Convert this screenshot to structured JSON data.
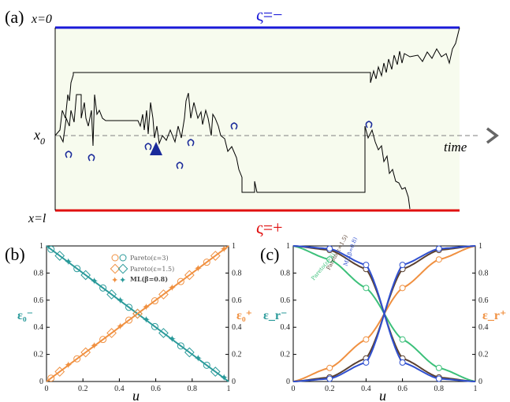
{
  "panel_a": {
    "label": "(a)",
    "top_boundary_label": "x=0",
    "bottom_boundary_label": "x=l",
    "start_label": "x",
    "start_subscript": "0",
    "time_label": "time",
    "top_sign_label": "ς=−",
    "bottom_sign_label": "ς=+",
    "colors": {
      "top": "#1a1ad8",
      "bottom": "#e01010",
      "bg": "#f7fbee",
      "arrow": "#666666",
      "marks": "#1a2a9a"
    }
  },
  "panel_b": {
    "label": "(b)",
    "xlabel": "u",
    "ylabel_left": "ε₀⁻",
    "ylabel_right": "ε₀⁺",
    "legend": [
      "Pareto(ε=3)",
      "Pareto(ε=1.5)",
      "ML(β=0.8)"
    ],
    "x_ticks": [
      "0",
      "0.2",
      "0.4",
      "0.6",
      "0.8",
      "1"
    ],
    "y_ticks": [
      "0",
      "0.2",
      "0.4",
      "0.6",
      "0.8",
      "1"
    ],
    "colors": {
      "minus": "#2a9a9a",
      "plus": "#f09040"
    }
  },
  "panel_c": {
    "label": "(c)",
    "xlabel": "u",
    "ylabel_left": "ε_r⁻",
    "ylabel_right": "ε_r⁺",
    "curve_labels": [
      "Pareto(ε=3)",
      "Pareto(ε=1.5)",
      "ML(β=0.8)"
    ],
    "x_ticks": [
      "0",
      "0.2",
      "0.4",
      "0.6",
      "0.8",
      "1"
    ],
    "y_ticks": [
      "0",
      "0.2",
      "0.4",
      "0.6",
      "0.8",
      "1"
    ],
    "colors": {
      "pareto3": "#3cc07a",
      "pareto15": "#5a4030",
      "ml": "#3050d0",
      "plus": "#f09040"
    }
  },
  "chart_data": [
    {
      "type": "line",
      "xlabel": "u",
      "ylim": [
        0,
        1
      ],
      "xlim": [
        0,
        1
      ],
      "series": [
        {
          "name": "Pareto(ε=3)",
          "x": [
            0,
            1
          ],
          "values": [
            1,
            0
          ]
        },
        {
          "name": "Pareto(ε=1.5)",
          "x": [
            0,
            1
          ],
          "values": [
            1,
            0
          ]
        },
        {
          "name": "ML(β=0.8)",
          "x": [
            0,
            1
          ],
          "values": [
            1,
            0
          ]
        }
      ]
    },
    {
      "type": "line",
      "xlabel": "u",
      "ylim": [
        0,
        1
      ],
      "xlim": [
        0,
        1
      ],
      "series": [
        {
          "name": "Pareto(ε=3)",
          "x": [
            0,
            0.2,
            0.4,
            0.6,
            0.8,
            1
          ],
          "values": [
            1,
            0.9,
            0.69,
            0.31,
            0.1,
            0
          ]
        },
        {
          "name": "Pareto(ε=1.5)",
          "x": [
            0,
            0.2,
            0.4,
            0.6,
            0.8,
            1
          ],
          "values": [
            1,
            0.97,
            0.83,
            0.17,
            0.03,
            0
          ]
        },
        {
          "name": "ML(β=0.8)",
          "x": [
            0,
            0.2,
            0.4,
            0.6,
            0.8,
            1
          ],
          "values": [
            1,
            0.98,
            0.86,
            0.14,
            0.02,
            0
          ]
        }
      ]
    }
  ]
}
